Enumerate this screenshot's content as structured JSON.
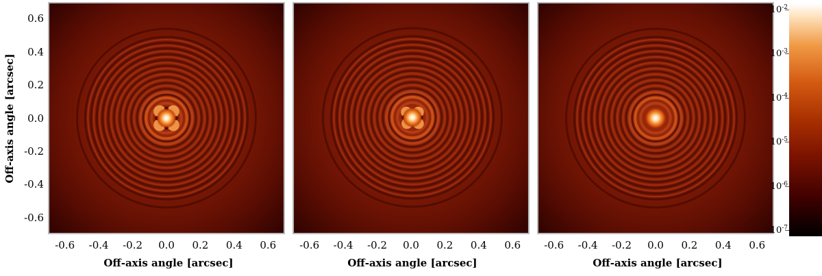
{
  "chart_data": [
    {
      "type": "heatmap",
      "panel": 1,
      "xlabel": "Off-axis angle [arcsec]",
      "ylabel": "Off-axis angle [arcsec]",
      "xlim": [
        -0.7,
        0.7
      ],
      "ylim": [
        -0.7,
        0.7
      ],
      "xticks": [
        "-0.6",
        "-0.4",
        "-0.2",
        "0.0",
        "0.2",
        "0.4",
        "0.6"
      ],
      "yticks": [
        "0.6",
        "0.4",
        "0.2",
        "0.0",
        "-0.2",
        "-0.4",
        "-0.6"
      ],
      "color_scale": "log",
      "center_pattern": "four-lobed core with speckled rings"
    },
    {
      "type": "heatmap",
      "panel": 2,
      "xlabel": "Off-axis angle [arcsec]",
      "xlim": [
        -0.7,
        0.7
      ],
      "ylim": [
        -0.7,
        0.7
      ],
      "xticks": [
        "-0.6",
        "-0.4",
        "-0.2",
        "0.0",
        "0.2",
        "0.4",
        "0.6"
      ],
      "color_scale": "log",
      "center_pattern": "partially lobed core with rings"
    },
    {
      "type": "heatmap",
      "panel": 3,
      "xlabel": "Off-axis angle [arcsec]",
      "xlim": [
        -0.7,
        0.7
      ],
      "ylim": [
        -0.7,
        0.7
      ],
      "xticks": [
        "-0.6",
        "-0.4",
        "-0.2",
        "0.0",
        "0.2",
        "0.4",
        "0.6"
      ],
      "color_scale": "log",
      "center_pattern": "circular Airy core with concentric rings"
    }
  ],
  "colorbar": {
    "scale": "log",
    "range": [
      "1e-7",
      "1e-2"
    ],
    "ticks": [
      {
        "base": "10",
        "exp": "-2"
      },
      {
        "base": "10",
        "exp": "-3"
      },
      {
        "base": "10",
        "exp": "-4"
      },
      {
        "base": "10",
        "exp": "-5"
      },
      {
        "base": "10",
        "exp": "-6"
      },
      {
        "base": "10",
        "exp": "-7"
      }
    ],
    "colormap_colors": [
      "#000000",
      "#3d0000",
      "#7a1200",
      "#a83000",
      "#d45a12",
      "#f09a45",
      "#fde0b8",
      "#ffffff"
    ]
  }
}
